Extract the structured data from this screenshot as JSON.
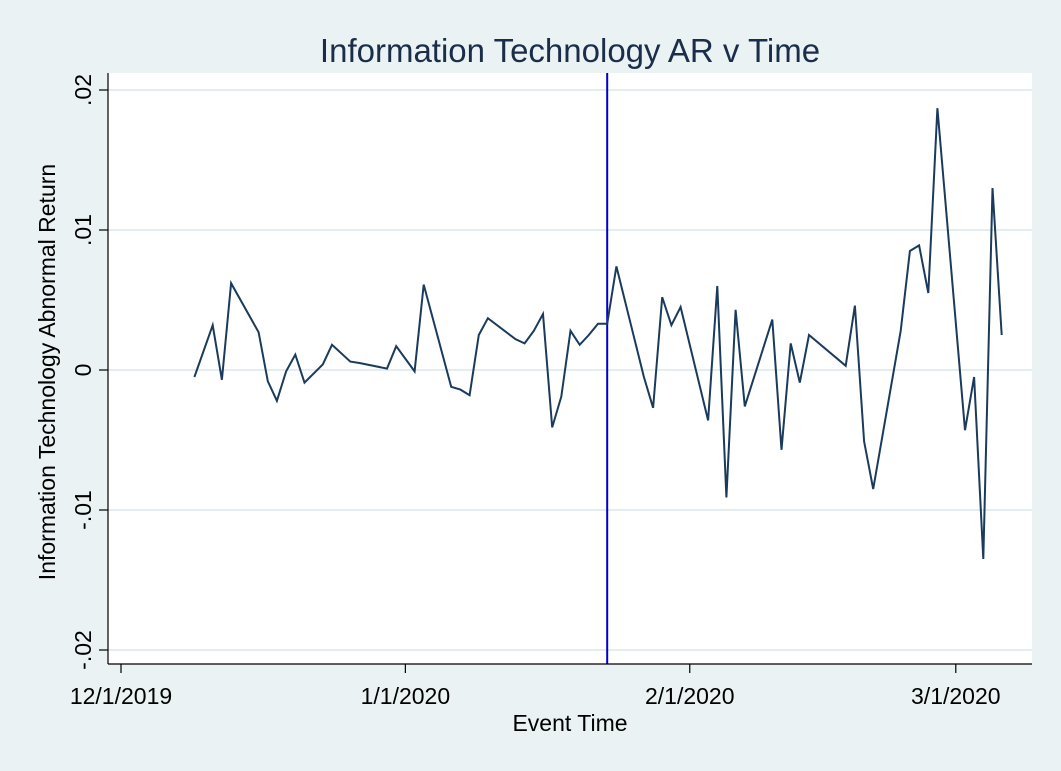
{
  "chart_data": {
    "type": "line",
    "title": "Information Technology AR v Time",
    "xlabel": "Event Time",
    "ylabel": "Information Technology Abnormal Return",
    "x_is_date": true,
    "xlim": [
      "2019-12-01",
      "2020-03-08"
    ],
    "ylim": [
      -0.02,
      0.02
    ],
    "y_ticks": [
      {
        "value": -0.02,
        "label": "-.02"
      },
      {
        "value": -0.01,
        "label": "-.01"
      },
      {
        "value": 0,
        "label": "0"
      },
      {
        "value": 0.01,
        "label": ".01"
      },
      {
        "value": 0.02,
        "label": ".02"
      }
    ],
    "x_ticks": [
      {
        "value": "2019-12-01",
        "label": "12/1/2019"
      },
      {
        "value": "2020-01-01",
        "label": "1/1/2020"
      },
      {
        "value": "2020-02-01",
        "label": "2/1/2020"
      },
      {
        "value": "2020-03-01",
        "label": "3/1/2020"
      }
    ],
    "grid": {
      "y": true,
      "x": false
    },
    "event_line": {
      "x": "2020-01-23",
      "color": "#0000cc"
    },
    "series": [
      {
        "color": "#1a3b5c",
        "points": [
          {
            "x": "2019-12-09",
            "y": -0.0005
          },
          {
            "x": "2019-12-11",
            "y": 0.0032
          },
          {
            "x": "2019-12-12",
            "y": -0.0007
          },
          {
            "x": "2019-12-13",
            "y": 0.0062
          },
          {
            "x": "2019-12-16",
            "y": 0.0027
          },
          {
            "x": "2019-12-17",
            "y": -0.0008
          },
          {
            "x": "2019-12-18",
            "y": -0.0022
          },
          {
            "x": "2019-12-19",
            "y": -0.0001
          },
          {
            "x": "2019-12-20",
            "y": 0.0011
          },
          {
            "x": "2019-12-21",
            "y": -0.0009
          },
          {
            "x": "2019-12-23",
            "y": 0.0004
          },
          {
            "x": "2019-12-24",
            "y": 0.0018
          },
          {
            "x": "2019-12-26",
            "y": 0.0006
          },
          {
            "x": "2019-12-27",
            "y": 0.0005
          },
          {
            "x": "2019-12-30",
            "y": 0.0001
          },
          {
            "x": "2019-12-31",
            "y": 0.0017
          },
          {
            "x": "2020-01-02",
            "y": -0.0001
          },
          {
            "x": "2020-01-03",
            "y": 0.0061
          },
          {
            "x": "2020-01-06",
            "y": -0.0012
          },
          {
            "x": "2020-01-07",
            "y": -0.0014
          },
          {
            "x": "2020-01-08",
            "y": -0.0018
          },
          {
            "x": "2020-01-09",
            "y": 0.0025
          },
          {
            "x": "2020-01-10",
            "y": 0.0037
          },
          {
            "x": "2020-01-13",
            "y": 0.0022
          },
          {
            "x": "2020-01-14",
            "y": 0.0019
          },
          {
            "x": "2020-01-15",
            "y": 0.0028
          },
          {
            "x": "2020-01-16",
            "y": 0.004
          },
          {
            "x": "2020-01-17",
            "y": -0.0041
          },
          {
            "x": "2020-01-18",
            "y": -0.0019
          },
          {
            "x": "2020-01-19",
            "y": 0.0028
          },
          {
            "x": "2020-01-20",
            "y": 0.0018
          },
          {
            "x": "2020-01-21",
            "y": 0.0025
          },
          {
            "x": "2020-01-22",
            "y": 0.0033
          },
          {
            "x": "2020-01-23",
            "y": 0.0033
          },
          {
            "x": "2020-01-24",
            "y": 0.0074
          },
          {
            "x": "2020-01-27",
            "y": -0.0005
          },
          {
            "x": "2020-01-28",
            "y": -0.0027
          },
          {
            "x": "2020-01-29",
            "y": 0.0052
          },
          {
            "x": "2020-01-30",
            "y": 0.0032
          },
          {
            "x": "2020-01-31",
            "y": 0.0045
          },
          {
            "x": "2020-02-03",
            "y": -0.0036
          },
          {
            "x": "2020-02-04",
            "y": 0.006
          },
          {
            "x": "2020-02-05",
            "y": -0.0091
          },
          {
            "x": "2020-02-06",
            "y": 0.0043
          },
          {
            "x": "2020-02-07",
            "y": -0.0026
          },
          {
            "x": "2020-02-10",
            "y": 0.0036
          },
          {
            "x": "2020-02-11",
            "y": -0.0057
          },
          {
            "x": "2020-02-12",
            "y": 0.0019
          },
          {
            "x": "2020-02-13",
            "y": -0.0009
          },
          {
            "x": "2020-02-14",
            "y": 0.0025
          },
          {
            "x": "2020-02-18",
            "y": 0.0003
          },
          {
            "x": "2020-02-19",
            "y": 0.0046
          },
          {
            "x": "2020-02-20",
            "y": -0.0051
          },
          {
            "x": "2020-02-21",
            "y": -0.0085
          },
          {
            "x": "2020-02-24",
            "y": 0.0028
          },
          {
            "x": "2020-02-25",
            "y": 0.0085
          },
          {
            "x": "2020-02-26",
            "y": 0.0089
          },
          {
            "x": "2020-02-27",
            "y": 0.0055
          },
          {
            "x": "2020-02-28",
            "y": 0.0187
          },
          {
            "x": "2020-03-02",
            "y": -0.0043
          },
          {
            "x": "2020-03-03",
            "y": -0.0005
          },
          {
            "x": "2020-03-04",
            "y": -0.0135
          },
          {
            "x": "2020-03-05",
            "y": 0.013
          },
          {
            "x": "2020-03-06",
            "y": 0.0025
          }
        ]
      }
    ]
  }
}
